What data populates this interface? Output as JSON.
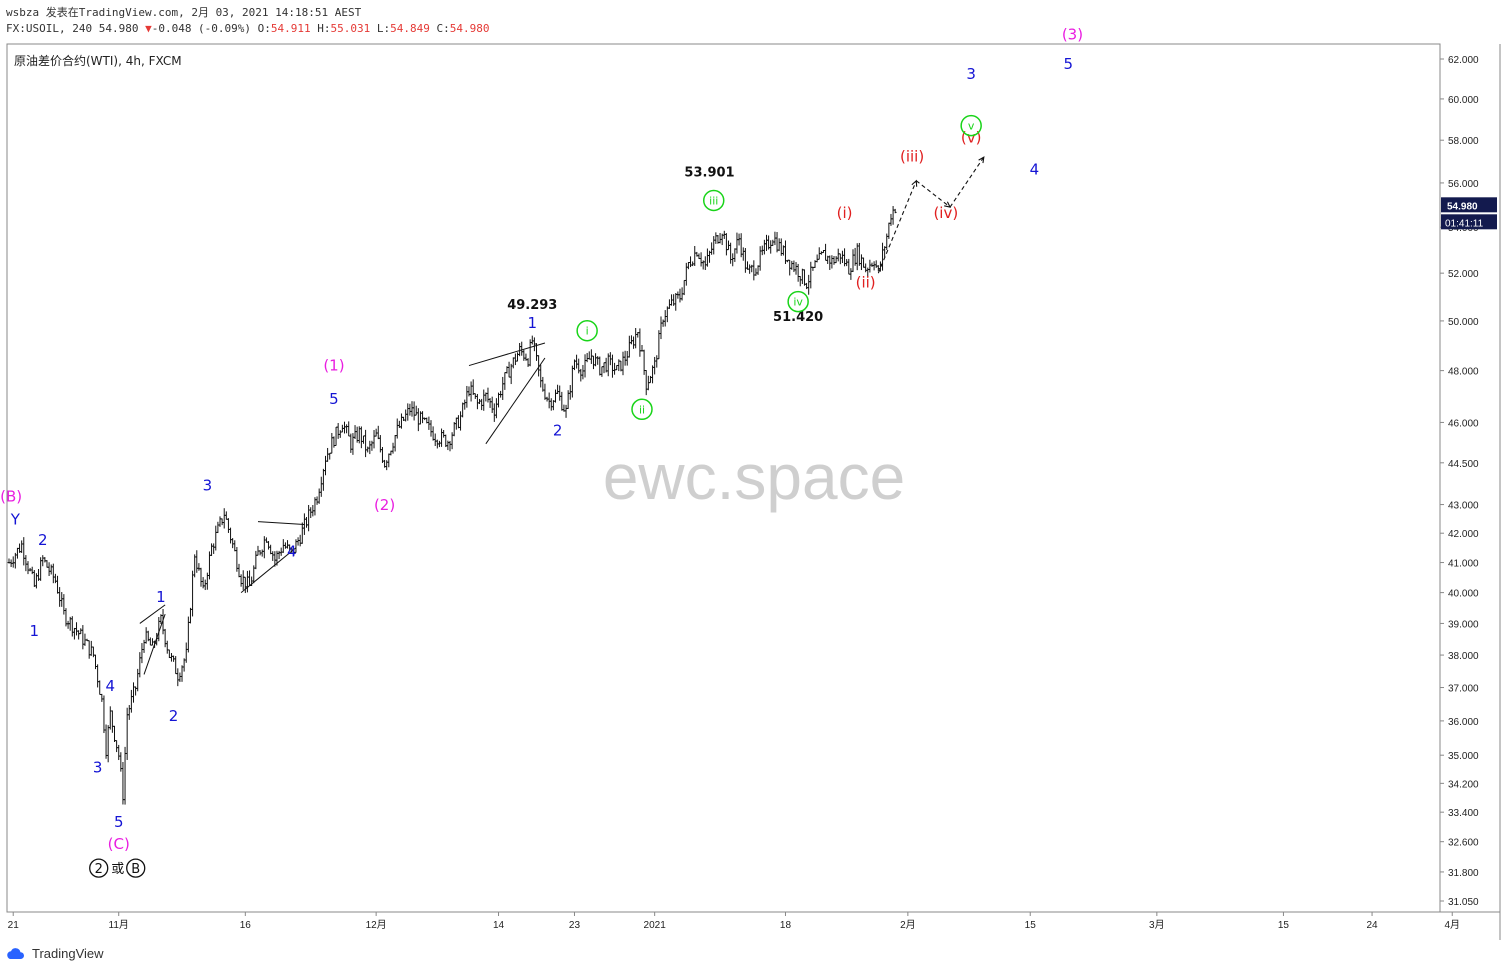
{
  "header": {
    "line1": "wsbza 发表在TradingView.com, 2月 03, 2021 14:18:51 AEST",
    "line2_prefix": "FX:USOIL, 240 54.980",
    "line2_arrow": "▼",
    "line2_change": "-0.048 (-0.09%)",
    "ohlc": [
      {
        "label": "O:",
        "value": "54.911"
      },
      {
        "label": "H:",
        "value": "55.031"
      },
      {
        "label": "L:",
        "value": "54.849"
      },
      {
        "label": "C:",
        "value": "54.980"
      }
    ]
  },
  "footer": {
    "brand": "TradingView"
  },
  "colors": {
    "bars": "#111111",
    "blue": "#1414d4",
    "magenta": "#e91ee0",
    "green": "#19d419",
    "red": "#e02020",
    "watermark": "#cfcfcf",
    "price_tag_bg": "#131a4e"
  },
  "chart_data": {
    "type": "ohlc",
    "title": "原油差价合约(WTI), 4h, FXCM",
    "watermark": "ewc.space",
    "y_ticks": [
      "31.050",
      "31.800",
      "32.600",
      "33.400",
      "34.200",
      "35.000",
      "36.000",
      "37.000",
      "38.000",
      "39.000",
      "40.000",
      "41.000",
      "42.000",
      "43.000",
      "44.500",
      "46.000",
      "48.000",
      "50.000",
      "52.000",
      "54.000",
      "56.000",
      "58.000",
      "60.000",
      "62.000"
    ],
    "y_scale": "log",
    "y_range": [
      31.05,
      62.0
    ],
    "x_ticks": [
      "21",
      "11月",
      "16",
      "12月",
      "14",
      "23",
      "2021",
      "18",
      "2月",
      "15",
      "3月",
      "15",
      "24",
      "4月"
    ],
    "last_price": "54.980",
    "countdown": "01:41:11",
    "price_path": [
      [
        0,
        41.0
      ],
      [
        3,
        41.6
      ],
      [
        6,
        40.2
      ],
      [
        8,
        41.1
      ],
      [
        11,
        40.4
      ],
      [
        13,
        39.3
      ],
      [
        17,
        38.6
      ],
      [
        20,
        38.0
      ],
      [
        22,
        36.6
      ],
      [
        23,
        35.2
      ],
      [
        24,
        36.2
      ],
      [
        26,
        35.0
      ],
      [
        27,
        33.9
      ],
      [
        28,
        36.2
      ],
      [
        30,
        37.0
      ],
      [
        32,
        38.6
      ],
      [
        34,
        38.2
      ],
      [
        36,
        39.1
      ],
      [
        38,
        38.0
      ],
      [
        40,
        37.4
      ],
      [
        42,
        38.0
      ],
      [
        44,
        41.3
      ],
      [
        46,
        40.0
      ],
      [
        48,
        41.5
      ],
      [
        51,
        42.7
      ],
      [
        53,
        41.6
      ],
      [
        55,
        40.5
      ],
      [
        57,
        40.2
      ],
      [
        59,
        41.3
      ],
      [
        61,
        41.9
      ],
      [
        63,
        41.1
      ],
      [
        65,
        41.6
      ],
      [
        67,
        41.3
      ],
      [
        69,
        41.9
      ],
      [
        71,
        42.6
      ],
      [
        73,
        43.3
      ],
      [
        75,
        44.7
      ],
      [
        77,
        45.4
      ],
      [
        79,
        46.0
      ],
      [
        81,
        45.2
      ],
      [
        83,
        45.6
      ],
      [
        85,
        44.9
      ],
      [
        87,
        45.5
      ],
      [
        89,
        44.5
      ],
      [
        92,
        45.7
      ],
      [
        95,
        46.5
      ],
      [
        98,
        46.0
      ],
      [
        101,
        45.5
      ],
      [
        104,
        45.3
      ],
      [
        107,
        46.2
      ],
      [
        109,
        47.3
      ],
      [
        111,
        46.7
      ],
      [
        113,
        47.0
      ],
      [
        115,
        46.5
      ],
      [
        117,
        47.5
      ],
      [
        119,
        48.2
      ],
      [
        121,
        48.8
      ],
      [
        123,
        48.5
      ],
      [
        124,
        49.2
      ],
      [
        126,
        47.5
      ],
      [
        128,
        46.8
      ],
      [
        130,
        47.1
      ],
      [
        132,
        46.4
      ],
      [
        134,
        48.4
      ],
      [
        136,
        48.0
      ],
      [
        138,
        48.6
      ],
      [
        140,
        48.1
      ],
      [
        142,
        48.3
      ],
      [
        144,
        48.0
      ],
      [
        146,
        48.5
      ],
      [
        149,
        49.6
      ],
      [
        151,
        47.5
      ],
      [
        153,
        48.2
      ],
      [
        155,
        50.2
      ],
      [
        157,
        50.7
      ],
      [
        159,
        51.0
      ],
      [
        161,
        52.4
      ],
      [
        163,
        53.0
      ],
      [
        165,
        52.3
      ],
      [
        167,
        53.3
      ],
      [
        169,
        53.9
      ],
      [
        171,
        52.6
      ],
      [
        173,
        53.5
      ],
      [
        175,
        52.0
      ],
      [
        177,
        52.3
      ],
      [
        179,
        53.0
      ],
      [
        181,
        53.6
      ],
      [
        183,
        53.0
      ],
      [
        185,
        52.5
      ],
      [
        187,
        52.1
      ],
      [
        189,
        51.6
      ],
      [
        191,
        52.3
      ],
      [
        193,
        52.8
      ],
      [
        195,
        52.5
      ],
      [
        197,
        52.8
      ],
      [
        199,
        52.2
      ],
      [
        201,
        52.9
      ],
      [
        203,
        52.2
      ],
      [
        205,
        52.6
      ],
      [
        206,
        52.0
      ],
      [
        208,
        53.6
      ],
      [
        209,
        54.6
      ],
      [
        210,
        54.9
      ]
    ],
    "projection": [
      [
        206,
        52.0
      ],
      [
        215,
        56.1
      ],
      [
        223,
        54.9
      ],
      [
        231,
        57.2
      ]
    ],
    "wave_labels": [
      {
        "text": "(B)",
        "color": "magenta",
        "x": 0.5,
        "y": 43.1
      },
      {
        "text": "Y",
        "color": "blue",
        "x": 1.5,
        "y": 42.3
      },
      {
        "text": "2",
        "color": "blue",
        "x": 8,
        "y": 41.6
      },
      {
        "text": "1",
        "color": "blue",
        "x": 6,
        "y": 38.6
      },
      {
        "text": "3",
        "color": "blue",
        "x": 21,
        "y": 34.5
      },
      {
        "text": "4",
        "color": "blue",
        "x": 24,
        "y": 36.9
      },
      {
        "text": "5",
        "color": "blue",
        "x": 26,
        "y": 33.0
      },
      {
        "text": "(C)",
        "color": "magenta",
        "x": 26,
        "y": 32.4
      },
      {
        "text": "1",
        "color": "blue",
        "x": 36,
        "y": 39.7
      },
      {
        "text": "2",
        "color": "blue",
        "x": 39,
        "y": 36.0
      },
      {
        "text": "3",
        "color": "blue",
        "x": 47,
        "y": 43.5
      },
      {
        "text": "4",
        "color": "blue",
        "x": 67,
        "y": 41.2
      },
      {
        "text": "(1)",
        "color": "magenta",
        "x": 77,
        "y": 48.0
      },
      {
        "text": "5",
        "color": "blue",
        "x": 77,
        "y": 46.7
      },
      {
        "text": "(2)",
        "color": "magenta",
        "x": 89,
        "y": 42.8
      },
      {
        "text": "49.293",
        "color": "black",
        "x": 124,
        "y": 50.5
      },
      {
        "text": "1",
        "color": "blue",
        "x": 124,
        "y": 49.7
      },
      {
        "text": "2",
        "color": "blue",
        "x": 130,
        "y": 45.5
      },
      {
        "text": "53.901",
        "color": "black",
        "x": 166,
        "y": 56.3
      },
      {
        "text": "51.420",
        "color": "black",
        "x": 187,
        "y": 50.0
      },
      {
        "text": "(i)",
        "color": "red",
        "x": 198,
        "y": 54.4
      },
      {
        "text": "(ii)",
        "color": "red",
        "x": 203,
        "y": 51.4
      },
      {
        "text": "(iii)",
        "color": "red",
        "x": 214,
        "y": 57.0
      },
      {
        "text": "(iv)",
        "color": "red",
        "x": 222,
        "y": 54.4
      },
      {
        "text": "(v)",
        "color": "red",
        "x": 228,
        "y": 57.9
      },
      {
        "text": "3",
        "color": "blue",
        "x": 228,
        "y": 61.0
      },
      {
        "text": "4",
        "color": "blue",
        "x": 243,
        "y": 56.4
      },
      {
        "text": "(3)",
        "color": "magenta",
        "x": 252,
        "y": 63.0
      },
      {
        "text": "5",
        "color": "blue",
        "x": 251,
        "y": 61.5
      }
    ],
    "circled_labels": [
      {
        "text": "i",
        "x": 137,
        "y": 49.6
      },
      {
        "text": "ii",
        "x": 150,
        "y": 46.5
      },
      {
        "text": "iii",
        "x": 167,
        "y": 55.2
      },
      {
        "text": "iv",
        "x": 187,
        "y": 50.8
      },
      {
        "text": "v",
        "x": 228,
        "y": 58.7
      }
    ],
    "bottom_label": {
      "left": "2",
      "middle": "或",
      "right": "B",
      "x": 26,
      "y": 31.9
    }
  }
}
